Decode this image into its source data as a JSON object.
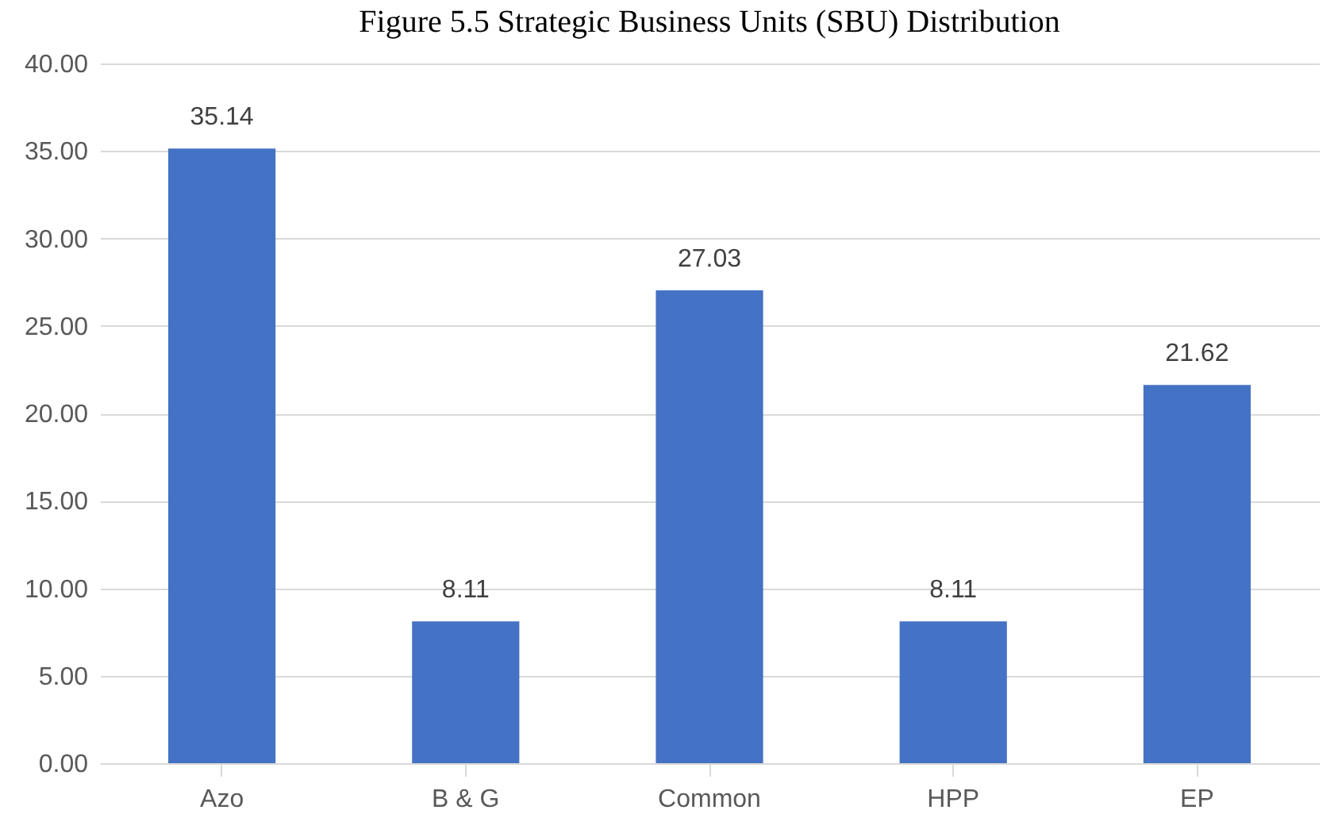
{
  "chart_data": {
    "type": "bar",
    "title": "Figure 5.5 Strategic Business Units (SBU) Distribution",
    "categories": [
      "Azo",
      "B & G",
      "Common",
      "HPP",
      "EP"
    ],
    "values": [
      35.14,
      8.11,
      27.03,
      8.11,
      21.62
    ],
    "color": "#4472c4",
    "data_labels": true,
    "ylim": [
      0,
      40
    ],
    "yticks": [
      {
        "value": 0,
        "label": "0.00"
      },
      {
        "value": 5,
        "label": "5.00"
      },
      {
        "value": 10,
        "label": "10.00"
      },
      {
        "value": 15,
        "label": "15.00"
      },
      {
        "value": 20,
        "label": "20.00"
      },
      {
        "value": 25,
        "label": "25.00"
      },
      {
        "value": 30,
        "label": "30.00"
      },
      {
        "value": 35,
        "label": "35.00"
      },
      {
        "value": 40,
        "label": "40.00"
      }
    ],
    "grid": "y"
  }
}
